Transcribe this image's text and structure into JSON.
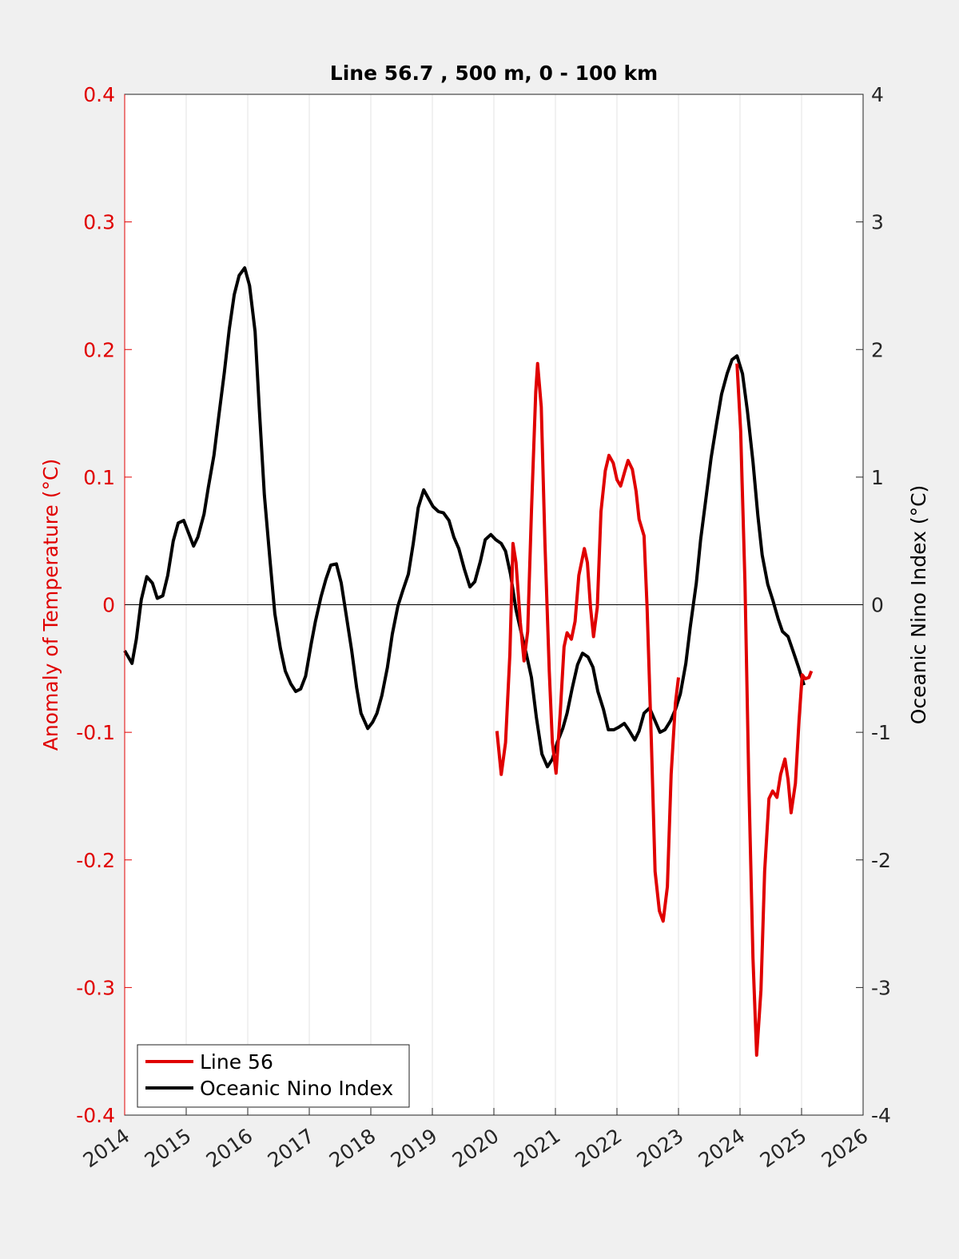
{
  "chart_data": {
    "type": "line",
    "title": "Line 56.7 , 500 m, 0 - 100 km",
    "ylabel": "Anomaly of Temperature (°C)",
    "y2label": "Oceanic Nino Index (°C)",
    "xlim": [
      2014,
      2026
    ],
    "xticks": [
      2014,
      2015,
      2016,
      2017,
      2018,
      2019,
      2020,
      2021,
      2022,
      2023,
      2024,
      2025,
      2026
    ],
    "ylim": [
      -0.4,
      0.4
    ],
    "yticks": [
      -0.4,
      -0.3,
      -0.2,
      -0.1,
      0,
      0.1,
      0.2,
      0.3,
      0.4
    ],
    "y2lim": [
      -4,
      4
    ],
    "y2ticks": [
      -4,
      -3,
      -2,
      -1,
      0,
      1,
      2,
      3,
      4
    ],
    "xgrid": true,
    "zero_line": true,
    "legend": "lower left",
    "ylabel_color": "#e00000",
    "series": [
      {
        "name": "Line 56",
        "color": "#e00000",
        "x": [
          2020.05,
          2020.12,
          2020.19,
          2020.26,
          2020.31,
          2020.36,
          2020.43,
          2020.49,
          2020.55,
          2020.61,
          2020.68,
          2020.71,
          2020.77,
          2020.83,
          2020.9,
          2020.95,
          2021.01,
          2021.08,
          2021.14,
          2021.19,
          2021.26,
          2021.32,
          2021.38,
          2021.47,
          2021.52,
          2021.57,
          2021.62,
          2021.68,
          2021.74,
          2021.81,
          2021.87,
          2021.94,
          2022.0,
          2022.06,
          2022.13,
          2022.18,
          2022.25,
          2022.31,
          2022.36,
          2022.44,
          2022.49,
          2022.56,
          2022.62,
          2022.69,
          2022.75,
          2022.82,
          2022.88,
          2022.95,
          2023.0,
          2023.5,
          2023.95,
          2024.01,
          2024.08,
          2024.14,
          2024.21,
          2024.27,
          2024.34,
          2024.4,
          2024.47,
          2024.53,
          2024.6,
          2024.66,
          2024.73,
          2024.78,
          2024.83,
          2024.9,
          2024.96,
          2025.01,
          2025.06,
          2025.12,
          2025.16
        ],
        "values": [
          -0.099,
          -0.133,
          -0.108,
          -0.039,
          0.048,
          0.033,
          -0.014,
          -0.044,
          -0.021,
          0.073,
          0.167,
          0.189,
          0.155,
          0.048,
          -0.052,
          -0.108,
          -0.132,
          -0.083,
          -0.033,
          -0.022,
          -0.027,
          -0.013,
          0.023,
          0.044,
          0.033,
          -0.002,
          -0.025,
          -0.002,
          0.073,
          0.105,
          0.117,
          0.111,
          0.098,
          0.093,
          0.105,
          0.113,
          0.106,
          0.089,
          0.067,
          0.054,
          -0.002,
          -0.108,
          -0.209,
          -0.24,
          -0.248,
          -0.221,
          -0.133,
          -0.077,
          -0.057,
          null,
          0.189,
          0.136,
          0.017,
          -0.133,
          -0.277,
          -0.353,
          -0.302,
          -0.209,
          -0.152,
          -0.146,
          -0.151,
          -0.133,
          -0.121,
          -0.137,
          -0.163,
          -0.14,
          -0.09,
          -0.055,
          -0.058,
          -0.057,
          -0.052
        ]
      },
      {
        "name": "Oceanic Nino Index",
        "color": "#000000",
        "axis": "y2",
        "x": [
          2014.0,
          2014.12,
          2014.19,
          2014.27,
          2014.36,
          2014.45,
          2014.53,
          2014.62,
          2014.7,
          2014.79,
          2014.87,
          2014.96,
          2015.04,
          2015.12,
          2015.19,
          2015.29,
          2015.36,
          2015.45,
          2015.53,
          2015.62,
          2015.7,
          2015.78,
          2015.86,
          2015.95,
          2016.03,
          2016.12,
          2016.19,
          2016.27,
          2016.36,
          2016.44,
          2016.53,
          2016.61,
          2016.7,
          2016.78,
          2016.86,
          2016.94,
          2017.03,
          2017.1,
          2017.19,
          2017.27,
          2017.35,
          2017.44,
          2017.52,
          2017.6,
          2017.69,
          2017.77,
          2017.84,
          2017.95,
          2018.03,
          2018.1,
          2018.18,
          2018.27,
          2018.35,
          2018.44,
          2018.52,
          2018.61,
          2018.69,
          2018.77,
          2018.86,
          2018.94,
          2019.01,
          2019.1,
          2019.18,
          2019.27,
          2019.35,
          2019.43,
          2019.52,
          2019.61,
          2019.69,
          2019.78,
          2019.86,
          2019.95,
          2020.03,
          2020.12,
          2020.19,
          2020.27,
          2020.36,
          2020.44,
          2020.53,
          2020.61,
          2020.69,
          2020.78,
          2020.87,
          2020.95,
          2021.03,
          2021.12,
          2021.19,
          2021.27,
          2021.36,
          2021.44,
          2021.53,
          2021.61,
          2021.69,
          2021.78,
          2021.86,
          2021.95,
          2022.03,
          2022.12,
          2022.19,
          2022.29,
          2022.36,
          2022.44,
          2022.53,
          2022.61,
          2022.7,
          2022.78,
          2022.87,
          2022.95,
          2023.03,
          2023.12,
          2023.19,
          2023.29,
          2023.36,
          2023.45,
          2023.53,
          2023.62,
          2023.7,
          2023.79,
          2023.87,
          2023.95,
          2024.04,
          2024.12,
          2024.21,
          2024.29,
          2024.36,
          2024.45,
          2024.53,
          2024.62,
          2024.69,
          2024.78,
          2024.86,
          2024.95,
          2025.04
        ],
        "values": [
          -0.36,
          -0.46,
          -0.27,
          0.04,
          0.22,
          0.17,
          0.05,
          0.07,
          0.23,
          0.5,
          0.64,
          0.66,
          0.56,
          0.46,
          0.53,
          0.71,
          0.92,
          1.17,
          1.48,
          1.82,
          2.16,
          2.43,
          2.58,
          2.64,
          2.5,
          2.14,
          1.52,
          0.86,
          0.36,
          -0.07,
          -0.34,
          -0.52,
          -0.62,
          -0.68,
          -0.66,
          -0.56,
          -0.31,
          -0.13,
          0.06,
          0.2,
          0.31,
          0.32,
          0.17,
          -0.08,
          -0.36,
          -0.65,
          -0.85,
          -0.97,
          -0.92,
          -0.85,
          -0.71,
          -0.49,
          -0.23,
          -0.01,
          0.11,
          0.24,
          0.48,
          0.76,
          0.9,
          0.83,
          0.77,
          0.73,
          0.72,
          0.66,
          0.53,
          0.44,
          0.28,
          0.14,
          0.18,
          0.34,
          0.51,
          0.55,
          0.51,
          0.48,
          0.42,
          0.24,
          -0.04,
          -0.21,
          -0.39,
          -0.57,
          -0.88,
          -1.17,
          -1.27,
          -1.21,
          -1.08,
          -0.97,
          -0.85,
          -0.66,
          -0.47,
          -0.38,
          -0.41,
          -0.49,
          -0.68,
          -0.82,
          -0.98,
          -0.98,
          -0.96,
          -0.93,
          -0.98,
          -1.06,
          -0.99,
          -0.85,
          -0.81,
          -0.9,
          -1,
          -0.98,
          -0.91,
          -0.82,
          -0.7,
          -0.46,
          -0.18,
          0.17,
          0.51,
          0.85,
          1.15,
          1.42,
          1.65,
          1.81,
          1.92,
          1.95,
          1.81,
          1.52,
          1.12,
          0.7,
          0.39,
          0.16,
          0.04,
          -0.11,
          -0.21,
          -0.25,
          -0.36,
          -0.49,
          -0.63
        ]
      }
    ]
  }
}
